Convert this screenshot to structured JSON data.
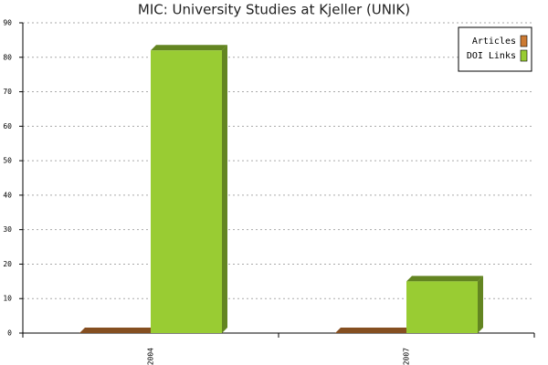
{
  "chart_data": {
    "type": "bar3d",
    "title": "MIC: University Studies at Kjeller (UNIK)",
    "categories": [
      "2004",
      "2007"
    ],
    "series": [
      {
        "name": "Articles",
        "color": "#cc7a33",
        "values": [
          0,
          0
        ]
      },
      {
        "name": "DOI Links",
        "color": "#99cc33",
        "values": [
          82,
          15
        ]
      }
    ],
    "ylim": [
      0,
      90
    ],
    "yticks": [
      0,
      10,
      20,
      30,
      40,
      50,
      60,
      70,
      80,
      90
    ],
    "grid": true,
    "legend": "top-right"
  }
}
